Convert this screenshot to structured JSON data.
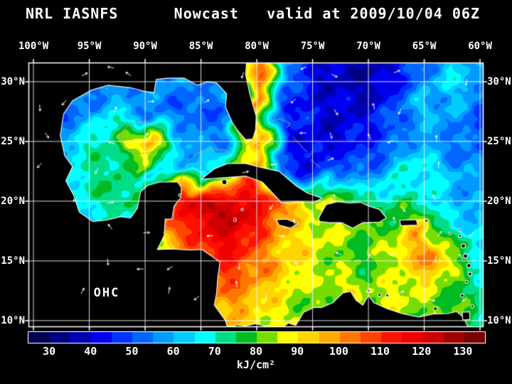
{
  "title": "NRL IASNFS      Nowcast   valid at 2009/10/04 06Z",
  "map": {
    "variable_label": "OHC",
    "annotation": "a",
    "lon_labels": [
      "100°W",
      "95°W",
      "90°W",
      "85°W",
      "80°W",
      "75°W",
      "70°W",
      "65°W",
      "60°W"
    ],
    "lat_labels": [
      "30°N",
      "25°N",
      "20°N",
      "15°N",
      "10°N"
    ]
  },
  "colorbar": {
    "ticks": [
      "30",
      "40",
      "50",
      "60",
      "70",
      "80",
      "90",
      "100",
      "110",
      "120",
      "130"
    ],
    "tick_values": [
      30,
      40,
      50,
      60,
      70,
      80,
      90,
      100,
      110,
      120,
      130
    ],
    "range": [
      25,
      135
    ],
    "units": "kJ/cm²",
    "palette": [
      "#00004d",
      "#000080",
      "#0000b3",
      "#0000ee",
      "#0033ff",
      "#0066ff",
      "#0099ff",
      "#00ccff",
      "#00ffff",
      "#00dd88",
      "#00bb22",
      "#77dd00",
      "#ffff00",
      "#ffd500",
      "#ffaa00",
      "#ff7700",
      "#ff4400",
      "#ff1100",
      "#ee0000",
      "#cc0000",
      "#a00000",
      "#780000"
    ]
  },
  "chart_data": {
    "type": "heatmap",
    "title": "NRL IASNFS Nowcast valid at 2009/10/04 06Z",
    "variable": "OHC (Ocean Heat Content)",
    "units": "kJ/cm²",
    "x_axis": {
      "label": "longitude",
      "tick_values": [
        100,
        95,
        90,
        85,
        80,
        75,
        70,
        65,
        60
      ],
      "direction": "°W",
      "range_w": [
        100.5,
        59.7
      ]
    },
    "y_axis": {
      "label": "latitude",
      "tick_values": [
        30,
        25,
        20,
        15,
        10
      ],
      "direction": "°N",
      "range_n": [
        9.5,
        31.6
      ]
    },
    "colorbar_range": [
      25,
      135
    ],
    "legend_position": "bottom",
    "grid": true,
    "grid_lons_w": [
      100,
      97.5,
      95,
      92.5,
      90,
      87.5,
      85,
      82.5,
      80,
      77.5,
      75,
      72.5,
      70,
      67.5,
      65,
      62.5,
      60
    ],
    "grid_lats_n": [
      30,
      27.5,
      25,
      22.5,
      20,
      17.5,
      15,
      12.5,
      10
    ],
    "values_kj_cm2": [
      [
        50,
        50,
        52,
        55,
        55,
        58,
        55,
        60,
        102,
        55,
        42,
        38,
        36,
        45,
        55,
        65,
        58
      ],
      [
        52,
        53,
        57,
        64,
        58,
        52,
        50,
        55,
        102,
        48,
        42,
        40,
        42,
        50,
        62,
        56,
        50
      ],
      [
        55,
        60,
        68,
        76,
        102,
        62,
        55,
        58,
        95,
        44,
        40,
        40,
        46,
        54,
        58,
        55,
        52
      ],
      [
        62,
        68,
        72,
        74,
        70,
        66,
        62,
        88,
        102,
        52,
        46,
        50,
        56,
        64,
        70,
        60,
        55
      ],
      [
        60,
        65,
        70,
        76,
        72,
        112,
        122,
        126,
        115,
        98,
        86,
        80,
        76,
        72,
        66,
        62,
        58
      ],
      [
        58,
        60,
        62,
        64,
        68,
        102,
        116,
        120,
        112,
        96,
        88,
        84,
        80,
        84,
        92,
        72,
        62
      ],
      [
        56,
        58,
        60,
        62,
        64,
        95,
        108,
        112,
        106,
        92,
        86,
        80,
        78,
        86,
        104,
        86,
        68
      ],
      [
        55,
        56,
        58,
        60,
        62,
        78,
        98,
        102,
        96,
        88,
        82,
        88,
        84,
        88,
        86,
        80,
        72
      ],
      [
        54,
        55,
        56,
        58,
        60,
        70,
        88,
        95,
        90,
        86,
        80,
        78,
        80,
        84,
        82,
        78,
        72
      ]
    ],
    "features": [
      "Warm-core eddy (~100 kJ/cm²) in central Gulf of Mexico near 90°W 25.5°N",
      "Loop Current / Gulf Stream warm band (~100 kJ/cm²) along 80°W from Cuba up to 30°N",
      "Very high OHC pool (>120 kJ/cm²) in NW Caribbean between 87°W and 78°W, 16-21°N",
      "Warm eddy (~105 kJ/cm²) near 65.5°W 14.5°N in the eastern Caribbean",
      "Low OHC (<45 kJ/cm²) over Bahamas banks and subtropical Atlantic north of 25°N",
      "White vector arrows show surface currents; land masked in black with white coastlines"
    ]
  }
}
